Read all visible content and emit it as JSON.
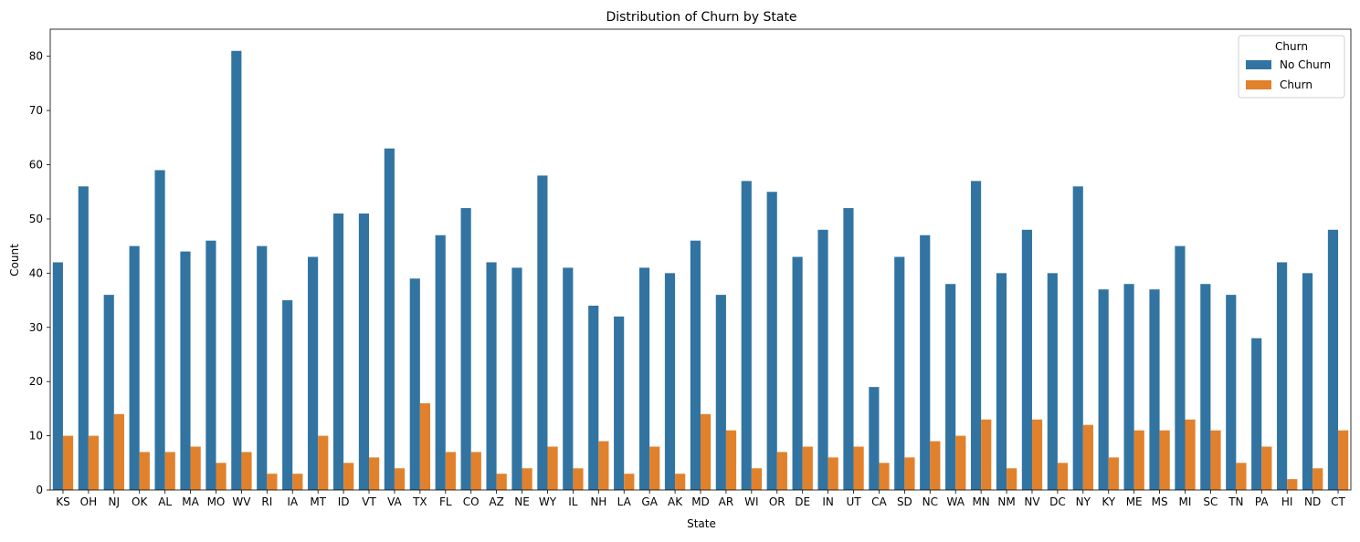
{
  "chart_data": {
    "type": "bar",
    "title": "Distribution of Churn by State",
    "xlabel": "State",
    "ylabel": "Count",
    "ylim": [
      0,
      85
    ],
    "yticks": [
      0,
      10,
      20,
      30,
      40,
      50,
      60,
      70,
      80
    ],
    "categories": [
      "KS",
      "OH",
      "NJ",
      "OK",
      "AL",
      "MA",
      "MO",
      "WV",
      "RI",
      "IA",
      "MT",
      "ID",
      "VT",
      "VA",
      "TX",
      "FL",
      "CO",
      "AZ",
      "NE",
      "WY",
      "IL",
      "NH",
      "LA",
      "GA",
      "AK",
      "MD",
      "AR",
      "WI",
      "OR",
      "DE",
      "IN",
      "UT",
      "CA",
      "SD",
      "NC",
      "WA",
      "MN",
      "NM",
      "NV",
      "DC",
      "NY",
      "KY",
      "ME",
      "MS",
      "MI",
      "SC",
      "TN",
      "PA",
      "HI",
      "ND",
      "CT"
    ],
    "series": [
      {
        "name": "No Churn",
        "color": "#3274a1",
        "values": [
          42,
          56,
          36,
          45,
          59,
          44,
          46,
          81,
          45,
          35,
          43,
          51,
          51,
          63,
          39,
          47,
          52,
          42,
          41,
          58,
          41,
          34,
          32,
          41,
          40,
          46,
          36,
          57,
          55,
          43,
          48,
          52,
          19,
          43,
          47,
          38,
          57,
          40,
          48,
          40,
          56,
          37,
          38,
          37,
          45,
          38,
          36,
          28,
          42,
          40,
          48
        ]
      },
      {
        "name": "Churn",
        "color": "#e1812c",
        "values": [
          10,
          10,
          14,
          7,
          7,
          8,
          5,
          7,
          3,
          3,
          10,
          5,
          6,
          4,
          16,
          7,
          7,
          3,
          4,
          8,
          4,
          9,
          3,
          8,
          3,
          14,
          11,
          4,
          7,
          8,
          6,
          8,
          5,
          6,
          9,
          10,
          13,
          4,
          13,
          5,
          12,
          6,
          11,
          11,
          13,
          11,
          5,
          8,
          2,
          4,
          11
        ]
      }
    ],
    "legend": {
      "title": "Churn",
      "placement": "top-right"
    },
    "grid": false
  }
}
